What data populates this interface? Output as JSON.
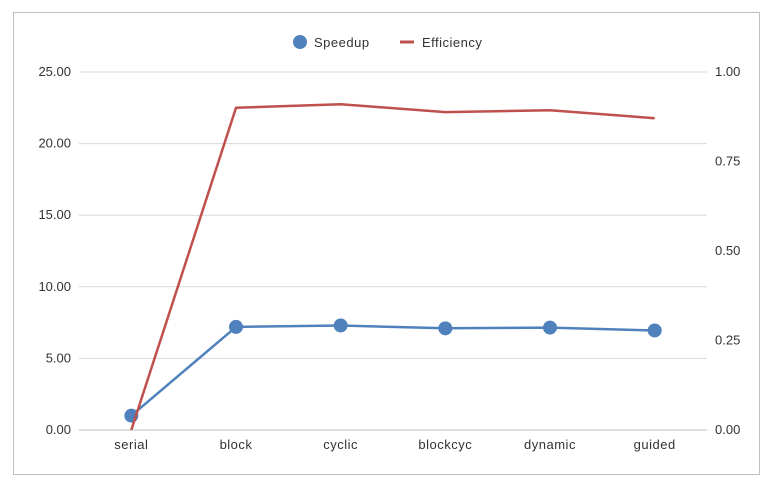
{
  "chart_data": {
    "type": "line",
    "categories": [
      "serial",
      "block",
      "cyclic",
      "blockcyc",
      "dynamic",
      "guided"
    ],
    "series": [
      {
        "name": "Speedup",
        "axis": "left",
        "marker": "circle",
        "color": "#4f81bd",
        "values": [
          1.0,
          7.2,
          7.3,
          7.1,
          7.15,
          6.95
        ]
      },
      {
        "name": "Efficiency",
        "axis": "right",
        "marker": "none",
        "color": "#c0504d",
        "values": [
          0.0,
          0.9,
          0.91,
          0.888,
          0.893,
          0.871
        ]
      }
    ],
    "y_left": {
      "min": 0,
      "max": 25,
      "ticks": [
        "0.00",
        "5.00",
        "10.00",
        "15.00",
        "20.00",
        "25.00"
      ]
    },
    "y_right": {
      "min": 0,
      "max": 1,
      "ticks": [
        "0.00",
        "0.25",
        "0.50",
        "0.75",
        "1.00"
      ]
    },
    "grid": true,
    "legend": "top-center",
    "title": "",
    "xlabel": "",
    "ylabel": ""
  }
}
